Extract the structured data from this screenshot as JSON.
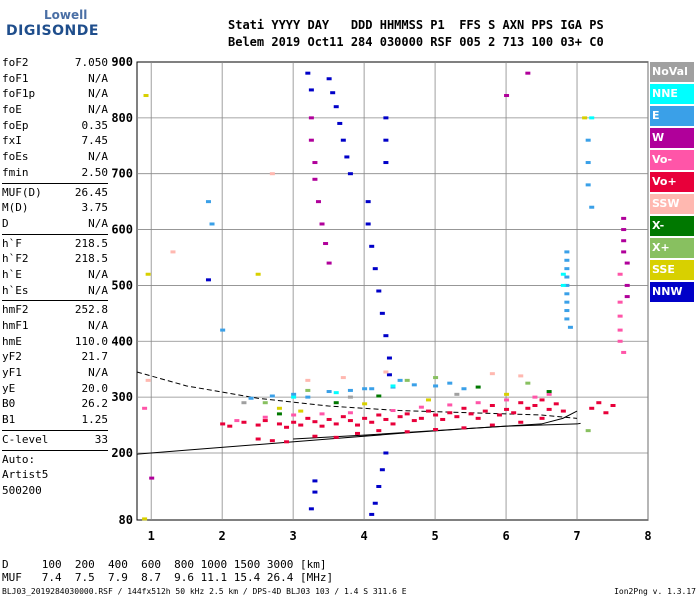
{
  "logo": {
    "line1": "Lowell",
    "line2": "DIGISONDE"
  },
  "header": {
    "line1": "Stati YYYY DAY   DDD HHMMSS P1  FFS S AXN PPS IGA PS",
    "line2": "Belem 2019 Oct11 284 030000 RSF 005 2 713 100 03+ C0"
  },
  "params_group1": [
    {
      "k": "foF2",
      "v": "7.050"
    },
    {
      "k": "foF1",
      "v": "N/A"
    },
    {
      "k": "foF1p",
      "v": "N/A"
    },
    {
      "k": "foE",
      "v": "N/A"
    },
    {
      "k": "foEp",
      "v": "0.35"
    },
    {
      "k": "fxI",
      "v": "7.45"
    },
    {
      "k": "foEs",
      "v": "N/A"
    },
    {
      "k": "fmin",
      "v": "2.50"
    }
  ],
  "params_group2": [
    {
      "k": "MUF(D)",
      "v": "26.45"
    },
    {
      "k": "M(D)",
      "v": "3.75"
    },
    {
      "k": "D",
      "v": "N/A"
    }
  ],
  "params_group3": [
    {
      "k": "h`F",
      "v": "218.5"
    },
    {
      "k": "h`F2",
      "v": "218.5"
    },
    {
      "k": "h`E",
      "v": "N/A"
    },
    {
      "k": "h`Es",
      "v": "N/A"
    }
  ],
  "params_group4": [
    {
      "k": "hmF2",
      "v": "252.8"
    },
    {
      "k": "hmF1",
      "v": "N/A"
    },
    {
      "k": "hmE",
      "v": "110.0"
    },
    {
      "k": "yF2",
      "v": "21.7"
    },
    {
      "k": "yF1",
      "v": "N/A"
    },
    {
      "k": "yE",
      "v": "20.0"
    },
    {
      "k": "B0",
      "v": "26.2"
    },
    {
      "k": "B1",
      "v": "1.25"
    }
  ],
  "clevel": {
    "k": "C-level",
    "v": "33"
  },
  "auto": [
    "Auto:",
    "Artist5",
    "500200"
  ],
  "legend": [
    {
      "label": "NoVal",
      "color": "#a0a0a0"
    },
    {
      "label": "NNE",
      "color": "#00ffff"
    },
    {
      "label": "E",
      "color": "#3aa0e8"
    },
    {
      "label": "W",
      "color": "#b0009a"
    },
    {
      "label": "Vo-",
      "color": "#ff55a8"
    },
    {
      "label": "Vo+",
      "color": "#e8003a"
    },
    {
      "label": "SSW",
      "color": "#ffb8b0"
    },
    {
      "label": "X-",
      "color": "#007800"
    },
    {
      "label": "X+",
      "color": "#88c060"
    },
    {
      "label": "SSE",
      "color": "#d8d000"
    },
    {
      "label": "NNW",
      "color": "#0000c8"
    }
  ],
  "footer": {
    "line1": "D     100  200  400  600  800 1000 1500 3000 [km]",
    "line2": "MUF   7.4  7.5  7.9  8.7  9.6 11.1 15.4 26.4 [MHz]",
    "source": "BLJ03_2019284030000.RSF / 144fx512h 50 kHz 2.5 km / DPS-4D BLJ03 103 / 1.4 S 311.6 E",
    "version": "Ion2Png v. 1.3.17"
  },
  "chart_data": {
    "type": "scatter",
    "title": "",
    "xlabel": "",
    "ylabel": "",
    "xlim": [
      0.8,
      8.0
    ],
    "ylim": [
      80,
      900
    ],
    "x_ticks": [
      1,
      2,
      3,
      4,
      5,
      6,
      7,
      8
    ],
    "y_ticks": [
      80,
      200,
      300,
      400,
      500,
      600,
      700,
      800,
      900
    ],
    "grid": true,
    "legend_position": "right",
    "lines": [
      {
        "style": "dashed",
        "x": [
          0.8,
          1.5,
          2.5,
          3.5,
          4.5,
          5.5,
          6.5,
          7.0
        ],
        "y": [
          345,
          320,
          298,
          284,
          276,
          272,
          268,
          262
        ]
      },
      {
        "style": "solid",
        "x": [
          0.8,
          1.5,
          2.5,
          3.5,
          4.5,
          5.5,
          6.5,
          6.8,
          7.0
        ],
        "y": [
          198,
          205,
          215,
          225,
          235,
          244,
          252,
          262,
          275
        ]
      },
      {
        "style": "solid",
        "x": [
          3.0,
          4.0,
          5.0,
          6.0,
          7.0,
          7.05
        ],
        "y": [
          225,
          232,
          240,
          248,
          252,
          253
        ]
      }
    ],
    "series": [
      {
        "name": "Vo+",
        "color": "#e8003a",
        "points": [
          [
            2.0,
            252
          ],
          [
            2.1,
            248
          ],
          [
            2.3,
            255
          ],
          [
            2.5,
            250
          ],
          [
            2.6,
            258
          ],
          [
            2.8,
            252
          ],
          [
            2.9,
            246
          ],
          [
            3.0,
            255
          ],
          [
            3.1,
            250
          ],
          [
            3.2,
            262
          ],
          [
            3.3,
            256
          ],
          [
            3.4,
            248
          ],
          [
            3.5,
            260
          ],
          [
            3.6,
            252
          ],
          [
            3.7,
            265
          ],
          [
            3.8,
            258
          ],
          [
            3.9,
            250
          ],
          [
            4.0,
            262
          ],
          [
            4.1,
            255
          ],
          [
            4.2,
            268
          ],
          [
            4.3,
            260
          ],
          [
            4.4,
            252
          ],
          [
            4.5,
            265
          ],
          [
            4.6,
            270
          ],
          [
            4.7,
            258
          ],
          [
            4.8,
            262
          ],
          [
            4.9,
            275
          ],
          [
            5.0,
            268
          ],
          [
            5.1,
            260
          ],
          [
            5.2,
            272
          ],
          [
            5.3,
            265
          ],
          [
            5.4,
            280
          ],
          [
            5.5,
            270
          ],
          [
            5.6,
            262
          ],
          [
            5.7,
            275
          ],
          [
            5.8,
            285
          ],
          [
            5.9,
            268
          ],
          [
            6.0,
            278
          ],
          [
            6.1,
            272
          ],
          [
            6.2,
            290
          ],
          [
            6.3,
            280
          ],
          [
            6.4,
            285
          ],
          [
            6.5,
            295
          ],
          [
            6.6,
            278
          ],
          [
            6.7,
            288
          ],
          [
            6.8,
            275
          ],
          [
            7.2,
            280
          ],
          [
            7.3,
            290
          ],
          [
            7.4,
            272
          ],
          [
            7.5,
            285
          ],
          [
            2.5,
            225
          ],
          [
            2.7,
            222
          ],
          [
            2.9,
            220
          ],
          [
            3.3,
            230
          ],
          [
            3.6,
            228
          ],
          [
            3.9,
            235
          ],
          [
            4.2,
            240
          ],
          [
            4.6,
            238
          ],
          [
            5.0,
            242
          ],
          [
            5.4,
            245
          ],
          [
            5.8,
            250
          ],
          [
            6.2,
            255
          ],
          [
            6.5,
            262
          ]
        ]
      },
      {
        "name": "Vo-",
        "color": "#ff55a8",
        "points": [
          [
            2.2,
            258
          ],
          [
            2.6,
            264
          ],
          [
            3.0,
            268
          ],
          [
            3.4,
            270
          ],
          [
            3.8,
            272
          ],
          [
            4.4,
            276
          ],
          [
            4.8,
            282
          ],
          [
            5.2,
            286
          ],
          [
            5.6,
            290
          ],
          [
            6.0,
            295
          ],
          [
            6.4,
            300
          ],
          [
            6.6,
            305
          ],
          [
            7.6,
            445
          ],
          [
            7.6,
            420
          ],
          [
            7.6,
            400
          ],
          [
            7.6,
            470
          ],
          [
            7.65,
            380
          ],
          [
            7.6,
            520
          ],
          [
            0.9,
            280
          ]
        ]
      },
      {
        "name": "E",
        "color": "#3aa0e8",
        "points": [
          [
            2.4,
            298
          ],
          [
            2.7,
            302
          ],
          [
            3.0,
            305
          ],
          [
            3.2,
            300
          ],
          [
            3.5,
            310
          ],
          [
            3.8,
            312
          ],
          [
            4.1,
            315
          ],
          [
            4.4,
            318
          ],
          [
            4.7,
            322
          ],
          [
            5.0,
            320
          ],
          [
            5.2,
            325
          ],
          [
            6.85,
            560
          ],
          [
            6.85,
            545
          ],
          [
            6.85,
            530
          ],
          [
            6.85,
            515
          ],
          [
            6.85,
            500
          ],
          [
            6.85,
            485
          ],
          [
            6.85,
            470
          ],
          [
            6.85,
            455
          ],
          [
            6.85,
            440
          ],
          [
            6.9,
            425
          ],
          [
            7.15,
            760
          ],
          [
            7.15,
            720
          ],
          [
            7.15,
            680
          ],
          [
            7.2,
            640
          ],
          [
            1.8,
            650
          ],
          [
            1.85,
            610
          ],
          [
            2.0,
            420
          ],
          [
            4.0,
            315
          ],
          [
            4.5,
            330
          ],
          [
            5.4,
            315
          ]
        ]
      },
      {
        "name": "W",
        "color": "#b0009a",
        "points": [
          [
            3.25,
            800
          ],
          [
            3.25,
            760
          ],
          [
            3.3,
            720
          ],
          [
            3.3,
            690
          ],
          [
            3.35,
            650
          ],
          [
            3.4,
            610
          ],
          [
            3.45,
            575
          ],
          [
            3.5,
            540
          ],
          [
            7.65,
            620
          ],
          [
            7.65,
            600
          ],
          [
            7.65,
            580
          ],
          [
            7.65,
            560
          ],
          [
            7.7,
            540
          ],
          [
            7.7,
            500
          ],
          [
            7.7,
            480
          ],
          [
            6.0,
            840
          ],
          [
            6.3,
            880
          ],
          [
            1.0,
            155
          ]
        ]
      },
      {
        "name": "NNW",
        "color": "#0000c8",
        "points": [
          [
            3.2,
            880
          ],
          [
            3.25,
            850
          ],
          [
            3.5,
            870
          ],
          [
            3.55,
            845
          ],
          [
            3.6,
            820
          ],
          [
            3.65,
            790
          ],
          [
            3.7,
            760
          ],
          [
            3.75,
            730
          ],
          [
            3.8,
            700
          ],
          [
            4.05,
            650
          ],
          [
            4.05,
            610
          ],
          [
            4.1,
            570
          ],
          [
            4.15,
            530
          ],
          [
            4.2,
            490
          ],
          [
            4.25,
            450
          ],
          [
            4.3,
            410
          ],
          [
            4.35,
            370
          ],
          [
            4.35,
            340
          ],
          [
            4.3,
            200
          ],
          [
            4.25,
            170
          ],
          [
            4.2,
            140
          ],
          [
            4.15,
            110
          ],
          [
            4.1,
            90
          ],
          [
            3.25,
            100
          ],
          [
            3.3,
            130
          ],
          [
            3.3,
            150
          ],
          [
            4.3,
            800
          ],
          [
            4.3,
            760
          ],
          [
            4.3,
            720
          ],
          [
            1.8,
            510
          ]
        ]
      },
      {
        "name": "NNE",
        "color": "#00ffff",
        "points": [
          [
            3.0,
            300
          ],
          [
            3.6,
            308
          ],
          [
            4.4,
            320
          ],
          [
            6.8,
            520
          ],
          [
            6.8,
            500
          ],
          [
            7.2,
            800
          ]
        ]
      },
      {
        "name": "SSW",
        "color": "#ffb8b0",
        "points": [
          [
            0.95,
            330
          ],
          [
            1.3,
            560
          ],
          [
            2.7,
            700
          ],
          [
            3.2,
            330
          ],
          [
            3.7,
            335
          ],
          [
            4.3,
            345
          ],
          [
            5.8,
            342
          ],
          [
            6.2,
            338
          ]
        ]
      },
      {
        "name": "X-",
        "color": "#007800",
        "points": [
          [
            2.8,
            270
          ],
          [
            3.6,
            290
          ],
          [
            4.2,
            302
          ],
          [
            5.6,
            318
          ],
          [
            6.6,
            310
          ]
        ]
      },
      {
        "name": "X+",
        "color": "#88c060",
        "points": [
          [
            2.6,
            290
          ],
          [
            3.2,
            312
          ],
          [
            4.6,
            330
          ],
          [
            5.0,
            335
          ],
          [
            6.3,
            325
          ],
          [
            7.15,
            240
          ]
        ]
      },
      {
        "name": "SSE",
        "color": "#d8d000",
        "points": [
          [
            0.92,
            840
          ],
          [
            0.95,
            520
          ],
          [
            2.5,
            520
          ],
          [
            2.8,
            280
          ],
          [
            3.1,
            275
          ],
          [
            4.0,
            288
          ],
          [
            4.9,
            295
          ],
          [
            6.0,
            305
          ],
          [
            7.1,
            800
          ],
          [
            0.9,
            82
          ]
        ]
      },
      {
        "name": "NoVal",
        "color": "#a0a0a0",
        "points": [
          [
            2.3,
            290
          ],
          [
            3.8,
            300
          ],
          [
            5.3,
            305
          ]
        ]
      }
    ]
  }
}
